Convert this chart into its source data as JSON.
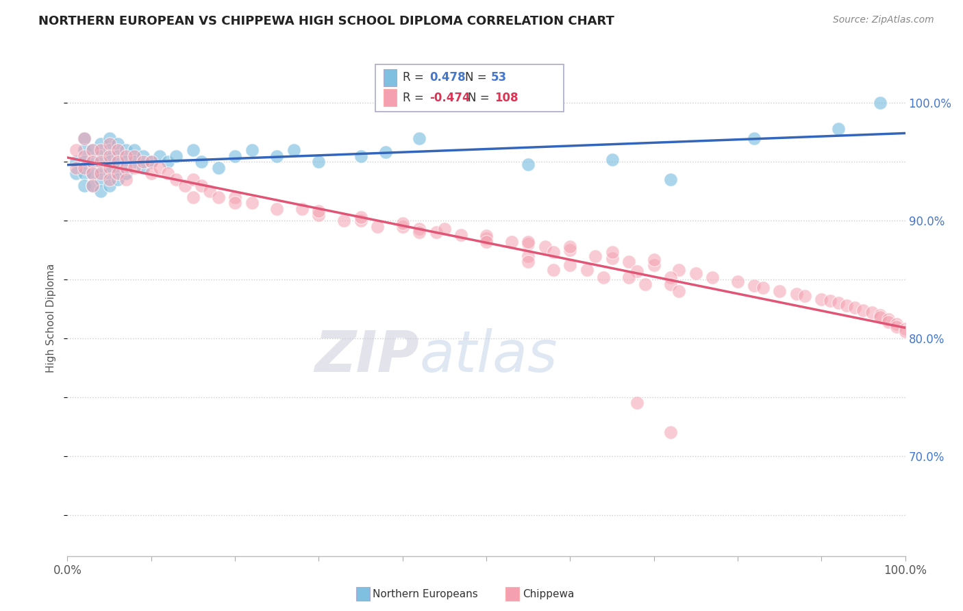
{
  "title": "NORTHERN EUROPEAN VS CHIPPEWA HIGH SCHOOL DIPLOMA CORRELATION CHART",
  "source": "Source: ZipAtlas.com",
  "ylabel": "High School Diploma",
  "xlim": [
    0.0,
    1.0
  ],
  "ylim": [
    0.615,
    1.02
  ],
  "yticks": [
    0.7,
    0.8,
    0.9,
    1.0
  ],
  "ytick_labels": [
    "70.0%",
    "80.0%",
    "90.0%",
    "100.0%"
  ],
  "blue_R": 0.478,
  "blue_N": 53,
  "pink_R": -0.474,
  "pink_N": 108,
  "blue_color": "#7fbfdf",
  "pink_color": "#f4a0b0",
  "blue_line_color": "#3366bb",
  "pink_line_color": "#e05575",
  "background_color": "#ffffff",
  "grid_color": "#cccccc",
  "legend_label_blue": "Northern Europeans",
  "legend_label_pink": "Chippewa",
  "blue_scatter_x": [
    0.01,
    0.01,
    0.02,
    0.02,
    0.02,
    0.02,
    0.02,
    0.03,
    0.03,
    0.03,
    0.03,
    0.04,
    0.04,
    0.04,
    0.04,
    0.04,
    0.05,
    0.05,
    0.05,
    0.05,
    0.05,
    0.06,
    0.06,
    0.06,
    0.06,
    0.07,
    0.07,
    0.07,
    0.08,
    0.08,
    0.09,
    0.09,
    0.1,
    0.11,
    0.12,
    0.13,
    0.15,
    0.16,
    0.18,
    0.2,
    0.22,
    0.25,
    0.27,
    0.3,
    0.35,
    0.38,
    0.42,
    0.55,
    0.65,
    0.72,
    0.82,
    0.92,
    0.97
  ],
  "blue_scatter_y": [
    0.95,
    0.94,
    0.97,
    0.96,
    0.95,
    0.94,
    0.93,
    0.96,
    0.95,
    0.94,
    0.93,
    0.965,
    0.955,
    0.945,
    0.935,
    0.925,
    0.97,
    0.96,
    0.95,
    0.94,
    0.93,
    0.965,
    0.955,
    0.945,
    0.935,
    0.96,
    0.95,
    0.94,
    0.96,
    0.95,
    0.955,
    0.945,
    0.95,
    0.955,
    0.95,
    0.955,
    0.96,
    0.95,
    0.945,
    0.955,
    0.96,
    0.955,
    0.96,
    0.95,
    0.955,
    0.958,
    0.97,
    0.948,
    0.952,
    0.935,
    0.97,
    0.978,
    1.0
  ],
  "pink_scatter_x": [
    0.01,
    0.01,
    0.02,
    0.02,
    0.02,
    0.03,
    0.03,
    0.03,
    0.03,
    0.04,
    0.04,
    0.04,
    0.05,
    0.05,
    0.05,
    0.05,
    0.06,
    0.06,
    0.06,
    0.07,
    0.07,
    0.07,
    0.08,
    0.08,
    0.09,
    0.1,
    0.1,
    0.11,
    0.12,
    0.13,
    0.14,
    0.15,
    0.16,
    0.17,
    0.18,
    0.2,
    0.22,
    0.25,
    0.28,
    0.3,
    0.33,
    0.35,
    0.37,
    0.4,
    0.42,
    0.44,
    0.47,
    0.5,
    0.53,
    0.55,
    0.57,
    0.6,
    0.63,
    0.65,
    0.67,
    0.7,
    0.73,
    0.75,
    0.77,
    0.8,
    0.82,
    0.83,
    0.85,
    0.87,
    0.88,
    0.9,
    0.91,
    0.92,
    0.93,
    0.94,
    0.95,
    0.96,
    0.97,
    0.97,
    0.98,
    0.98,
    0.99,
    0.99,
    1.0,
    1.0,
    0.15,
    0.2,
    0.3,
    0.35,
    0.4,
    0.45,
    0.5,
    0.55,
    0.6,
    0.65,
    0.7,
    0.55,
    0.6,
    0.68,
    0.72,
    0.55,
    0.62,
    0.67,
    0.72,
    0.58,
    0.64,
    0.69,
    0.73,
    0.68,
    0.72,
    0.42,
    0.5,
    0.58
  ],
  "pink_scatter_y": [
    0.96,
    0.945,
    0.97,
    0.955,
    0.945,
    0.96,
    0.95,
    0.94,
    0.93,
    0.96,
    0.95,
    0.94,
    0.965,
    0.955,
    0.945,
    0.935,
    0.96,
    0.95,
    0.94,
    0.955,
    0.945,
    0.935,
    0.955,
    0.945,
    0.95,
    0.95,
    0.94,
    0.945,
    0.94,
    0.935,
    0.93,
    0.935,
    0.93,
    0.925,
    0.92,
    0.92,
    0.915,
    0.91,
    0.91,
    0.905,
    0.9,
    0.9,
    0.895,
    0.895,
    0.893,
    0.89,
    0.888,
    0.885,
    0.882,
    0.88,
    0.878,
    0.875,
    0.87,
    0.868,
    0.865,
    0.862,
    0.858,
    0.855,
    0.852,
    0.848,
    0.845,
    0.843,
    0.84,
    0.838,
    0.836,
    0.833,
    0.832,
    0.83,
    0.828,
    0.826,
    0.824,
    0.822,
    0.82,
    0.818,
    0.816,
    0.814,
    0.812,
    0.81,
    0.808,
    0.806,
    0.92,
    0.915,
    0.908,
    0.903,
    0.898,
    0.893,
    0.887,
    0.882,
    0.878,
    0.873,
    0.867,
    0.87,
    0.862,
    0.857,
    0.852,
    0.865,
    0.858,
    0.852,
    0.846,
    0.858,
    0.852,
    0.846,
    0.84,
    0.745,
    0.72,
    0.89,
    0.882,
    0.873
  ]
}
